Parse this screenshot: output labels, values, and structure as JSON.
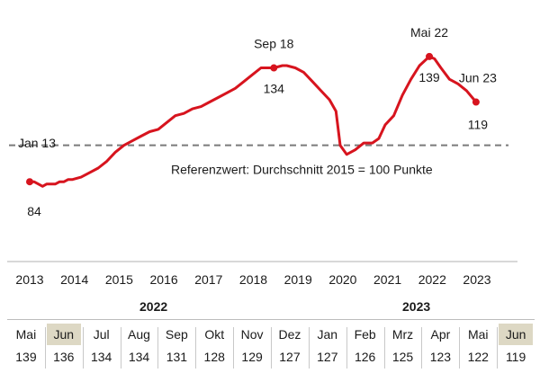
{
  "chart_data": {
    "type": "line",
    "x_ticks": [
      "2013",
      "2014",
      "2015",
      "2016",
      "2017",
      "2018",
      "2019",
      "2020",
      "2021",
      "2022",
      "2023"
    ],
    "xlim": [
      2013.0,
      2023.8
    ],
    "ylim": [
      75,
      150
    ],
    "grid": false,
    "reference": {
      "value": 100,
      "label": "Referenzwert:  Durchschnitt 2015 = 100 Punkte"
    },
    "series": [
      {
        "color": "#d7141e",
        "points": [
          [
            2013.0,
            84
          ],
          [
            2013.1,
            84
          ],
          [
            2013.2,
            83
          ],
          [
            2013.3,
            82
          ],
          [
            2013.4,
            83
          ],
          [
            2013.5,
            83
          ],
          [
            2013.6,
            83
          ],
          [
            2013.7,
            84
          ],
          [
            2013.8,
            84
          ],
          [
            2013.9,
            85
          ],
          [
            2014.0,
            85
          ],
          [
            2014.2,
            86
          ],
          [
            2014.4,
            88
          ],
          [
            2014.6,
            90
          ],
          [
            2014.8,
            93
          ],
          [
            2015.0,
            97
          ],
          [
            2015.2,
            100
          ],
          [
            2015.4,
            102
          ],
          [
            2015.6,
            104
          ],
          [
            2015.8,
            106
          ],
          [
            2016.0,
            107
          ],
          [
            2016.2,
            110
          ],
          [
            2016.4,
            113
          ],
          [
            2016.6,
            114
          ],
          [
            2016.8,
            116
          ],
          [
            2017.0,
            117
          ],
          [
            2017.2,
            119
          ],
          [
            2017.4,
            121
          ],
          [
            2017.6,
            123
          ],
          [
            2017.8,
            125
          ],
          [
            2018.0,
            128
          ],
          [
            2018.2,
            131
          ],
          [
            2018.4,
            134
          ],
          [
            2018.7,
            134
          ],
          [
            2018.9,
            135
          ],
          [
            2019.0,
            135
          ],
          [
            2019.2,
            134
          ],
          [
            2019.4,
            132
          ],
          [
            2019.6,
            128
          ],
          [
            2019.8,
            124
          ],
          [
            2020.0,
            120
          ],
          [
            2020.15,
            115
          ],
          [
            2020.25,
            100
          ],
          [
            2020.4,
            96
          ],
          [
            2020.6,
            98
          ],
          [
            2020.8,
            101
          ],
          [
            2021.0,
            101
          ],
          [
            2021.15,
            103
          ],
          [
            2021.3,
            109
          ],
          [
            2021.5,
            113
          ],
          [
            2021.7,
            122
          ],
          [
            2021.9,
            129
          ],
          [
            2022.1,
            135
          ],
          [
            2022.33,
            139
          ],
          [
            2022.45,
            138
          ],
          [
            2022.6,
            134
          ],
          [
            2022.8,
            129
          ],
          [
            2023.0,
            127
          ],
          [
            2023.2,
            124
          ],
          [
            2023.42,
            119
          ]
        ]
      }
    ],
    "annotations": [
      {
        "x": 2013.0,
        "y": 84,
        "label": "Jan 13",
        "value_label": "84",
        "marker": true
      },
      {
        "x": 2018.7,
        "y": 134,
        "label": "Sep 18",
        "value_label": "134",
        "marker": true
      },
      {
        "x": 2022.33,
        "y": 139,
        "label": "Mai 22",
        "value_label": "139",
        "marker": true
      },
      {
        "x": 2023.42,
        "y": 119,
        "label": "Jun 23",
        "value_label": "119",
        "marker": true
      }
    ]
  },
  "table": {
    "year_labels": [
      "2022",
      "2023"
    ],
    "columns": [
      {
        "month": "Mai",
        "value": "139",
        "highlight": false
      },
      {
        "month": "Jun",
        "value": "136",
        "highlight": true
      },
      {
        "month": "Jul",
        "value": "134",
        "highlight": false
      },
      {
        "month": "Aug",
        "value": "134",
        "highlight": false
      },
      {
        "month": "Sep",
        "value": "131",
        "highlight": false
      },
      {
        "month": "Okt",
        "value": "128",
        "highlight": false
      },
      {
        "month": "Nov",
        "value": "129",
        "highlight": false
      },
      {
        "month": "Dez",
        "value": "127",
        "highlight": false
      },
      {
        "month": "Jan",
        "value": "127",
        "highlight": false
      },
      {
        "month": "Feb",
        "value": "126",
        "highlight": false
      },
      {
        "month": "Mrz",
        "value": "125",
        "highlight": false
      },
      {
        "month": "Apr",
        "value": "123",
        "highlight": false
      },
      {
        "month": "Mai",
        "value": "122",
        "highlight": false
      },
      {
        "month": "Jun",
        "value": "119",
        "highlight": true
      }
    ]
  }
}
